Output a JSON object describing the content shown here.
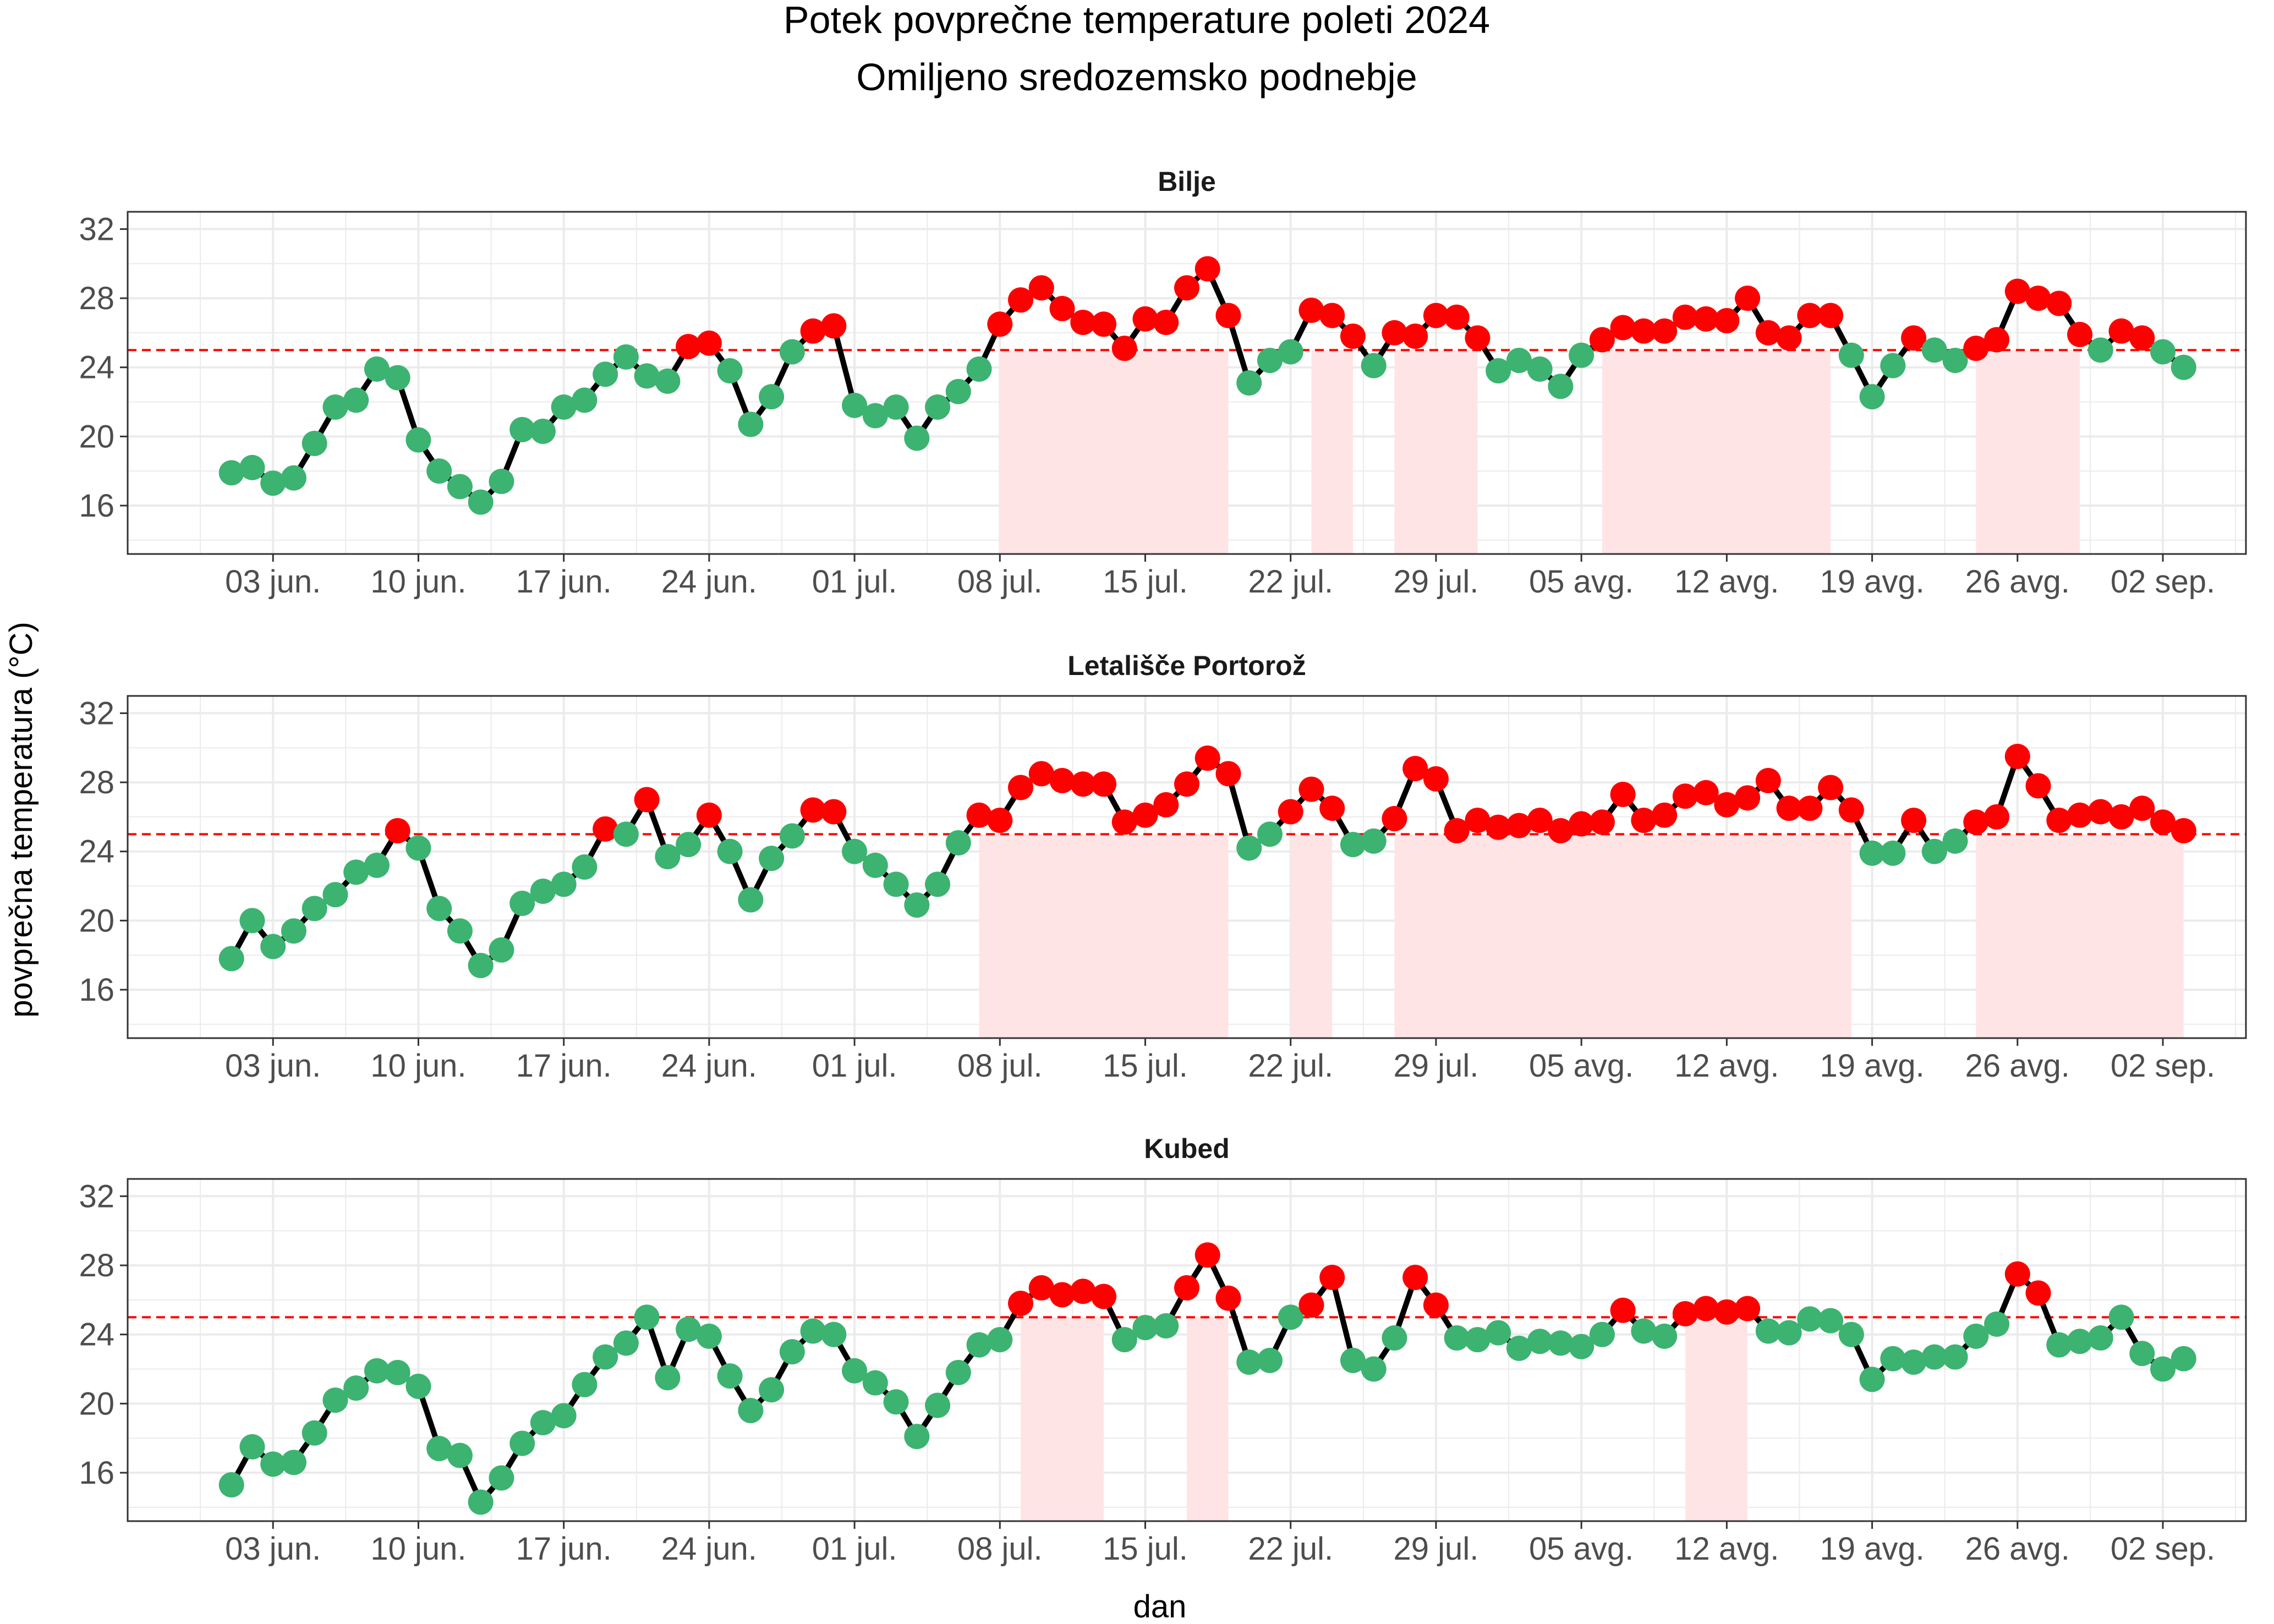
{
  "chart_data": {
    "type": "line",
    "title": "Potek povprečne temperature poleti 2024",
    "subtitle": "Omiljeno sredozemsko podnebje",
    "xlabel": "dan",
    "ylabel": "povprečna temperatura (°C)",
    "x_start": "2024-06-01",
    "x_end": "2024-09-03",
    "xlim": [
      "2024-05-27",
      "2024-09-06"
    ],
    "ylim": [
      13.2,
      33.0
    ],
    "y_ticks": [
      16,
      20,
      24,
      28,
      32
    ],
    "x_ticks": [
      {
        "date": "2024-06-03",
        "label": "03 jun."
      },
      {
        "date": "2024-06-10",
        "label": "10 jun."
      },
      {
        "date": "2024-06-17",
        "label": "17 jun."
      },
      {
        "date": "2024-06-24",
        "label": "24 jun."
      },
      {
        "date": "2024-07-01",
        "label": "01 jul."
      },
      {
        "date": "2024-07-08",
        "label": "08 jul."
      },
      {
        "date": "2024-07-15",
        "label": "15 jul."
      },
      {
        "date": "2024-07-22",
        "label": "22 jul."
      },
      {
        "date": "2024-07-29",
        "label": "29 jul."
      },
      {
        "date": "2024-08-05",
        "label": "05 avg."
      },
      {
        "date": "2024-08-12",
        "label": "12 avg."
      },
      {
        "date": "2024-08-19",
        "label": "19 avg."
      },
      {
        "date": "2024-08-26",
        "label": "26 avg."
      },
      {
        "date": "2024-09-02",
        "label": "02 sep."
      }
    ],
    "threshold": 25,
    "grid": true,
    "colors": {
      "above_threshold": "#ff0000",
      "below_threshold": "#3cb371",
      "line": "#000000",
      "threshold_line": "#ff0000",
      "shade": "#ffe4e6",
      "panel_border": "#333333",
      "grid": "#ebebeb"
    },
    "panels": [
      {
        "name": "Bilje",
        "values": [
          17.9,
          18.2,
          17.3,
          17.6,
          19.6,
          21.7,
          22.1,
          23.9,
          23.4,
          19.8,
          18.0,
          17.1,
          16.2,
          17.4,
          20.4,
          20.3,
          21.7,
          22.1,
          23.6,
          24.6,
          23.5,
          23.2,
          25.2,
          25.4,
          23.8,
          20.7,
          22.3,
          24.9,
          26.1,
          26.4,
          21.8,
          21.2,
          21.7,
          19.9,
          21.7,
          22.6,
          23.9,
          26.5,
          27.9,
          28.6,
          27.4,
          26.6,
          26.5,
          25.1,
          26.8,
          26.6,
          28.6,
          29.7,
          27.0,
          23.1,
          24.4,
          24.9,
          27.3,
          27.0,
          25.8,
          24.1,
          26.0,
          25.8,
          27.0,
          26.9,
          25.7,
          23.8,
          24.4,
          23.9,
          22.9,
          24.7,
          25.6,
          26.3,
          26.1,
          26.1,
          26.9,
          26.8,
          26.7,
          28.0,
          26.0,
          25.7,
          27.0,
          27.0,
          24.7,
          22.3,
          24.1,
          25.7,
          25.0,
          24.4,
          25.1,
          25.6,
          28.4,
          28.0,
          27.7,
          25.9,
          25.0,
          26.1,
          25.7,
          24.9,
          24.0
        ]
      },
      {
        "name": "Letališče Portorož",
        "values": [
          17.8,
          20.0,
          18.5,
          19.4,
          20.7,
          21.5,
          22.8,
          23.2,
          25.2,
          24.2,
          20.7,
          19.4,
          17.4,
          18.3,
          21.0,
          21.7,
          22.1,
          23.1,
          25.3,
          25.0,
          27.0,
          23.7,
          24.4,
          26.1,
          24.0,
          21.2,
          23.6,
          24.9,
          26.4,
          26.3,
          24.0,
          23.2,
          22.1,
          20.9,
          22.1,
          24.5,
          26.1,
          25.8,
          27.7,
          28.5,
          28.1,
          27.9,
          27.9,
          25.7,
          26.1,
          26.7,
          27.9,
          29.4,
          28.5,
          24.2,
          25.0,
          26.3,
          27.6,
          26.5,
          24.4,
          24.6,
          25.9,
          28.8,
          28.2,
          25.2,
          25.8,
          25.4,
          25.5,
          25.8,
          25.2,
          25.6,
          25.7,
          27.3,
          25.8,
          26.1,
          27.2,
          27.4,
          26.7,
          27.1,
          28.1,
          26.5,
          26.5,
          27.7,
          26.4,
          23.9,
          23.9,
          25.8,
          24.0,
          24.6,
          25.7,
          26.0,
          29.5,
          27.8,
          25.8,
          26.1,
          26.3,
          26.0,
          26.5,
          25.7,
          25.2
        ]
      },
      {
        "name": "Kubed",
        "values": [
          15.3,
          17.5,
          16.5,
          16.6,
          18.3,
          20.2,
          20.9,
          21.9,
          21.8,
          21.0,
          17.4,
          17.0,
          14.3,
          15.7,
          17.7,
          18.9,
          19.3,
          21.1,
          22.7,
          23.5,
          25.0,
          21.5,
          24.3,
          23.9,
          21.6,
          19.6,
          20.8,
          23.0,
          24.2,
          24.0,
          21.9,
          21.2,
          20.1,
          18.1,
          19.9,
          21.8,
          23.4,
          23.7,
          25.8,
          26.7,
          26.3,
          26.5,
          26.2,
          23.7,
          24.4,
          24.5,
          26.7,
          28.6,
          26.1,
          22.4,
          22.5,
          25.0,
          25.7,
          27.3,
          22.5,
          22.0,
          23.8,
          27.3,
          25.7,
          23.8,
          23.7,
          24.1,
          23.2,
          23.6,
          23.5,
          23.3,
          24.0,
          25.4,
          24.2,
          23.9,
          25.2,
          25.5,
          25.3,
          25.5,
          24.2,
          24.1,
          24.9,
          24.8,
          24.0,
          21.4,
          22.6,
          22.4,
          22.7,
          22.7,
          23.9,
          24.6,
          27.5,
          26.4,
          23.4,
          23.6,
          23.8,
          25.0,
          22.9,
          22.0,
          22.6
        ]
      }
    ]
  }
}
